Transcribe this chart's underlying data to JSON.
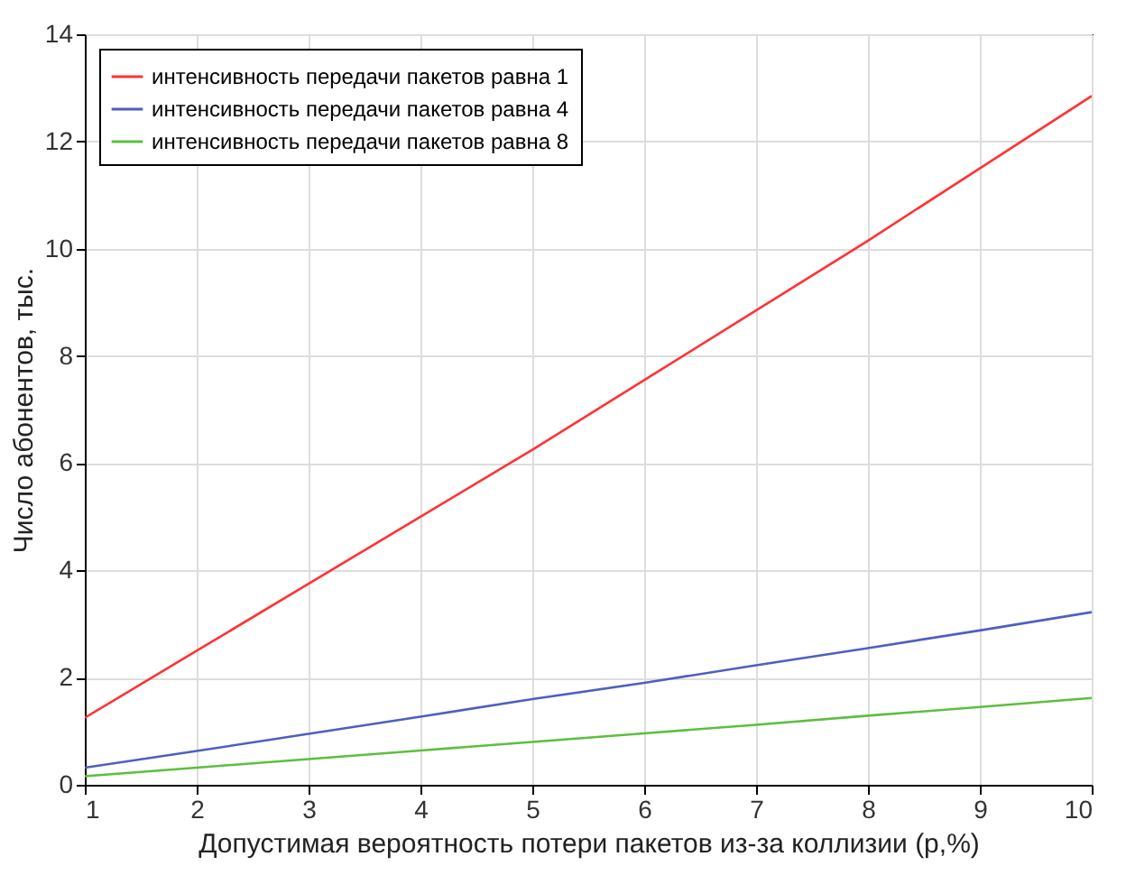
{
  "chart_data": {
    "type": "line",
    "xlabel": "Допустимая вероятность потери пакетов из-за коллизии (p,%)",
    "ylabel": "Число абонентов, тыс.",
    "x": [
      1,
      2,
      3,
      4,
      5,
      6,
      7,
      8,
      9,
      10
    ],
    "series": [
      {
        "name": "интенсивность передачи пакетов равна 1",
        "color": "#ff3333",
        "values": [
          1.25,
          2.5,
          3.75,
          5.0,
          6.25,
          7.55,
          8.85,
          10.15,
          11.5,
          12.85
        ]
      },
      {
        "name": "интенсивность передачи пакетов равна 4",
        "color": "#4f5fbf",
        "values": [
          0.32,
          0.63,
          0.95,
          1.27,
          1.6,
          1.9,
          2.23,
          2.55,
          2.88,
          3.22
        ]
      },
      {
        "name": "интенсивность передачи пакетов равна 8",
        "color": "#5cbf3f",
        "values": [
          0.16,
          0.32,
          0.48,
          0.64,
          0.8,
          0.96,
          1.12,
          1.29,
          1.45,
          1.62
        ]
      }
    ],
    "xlim": [
      1,
      10
    ],
    "xticks": [
      1,
      2,
      3,
      4,
      5,
      6,
      7,
      8,
      9,
      10
    ],
    "ylim": [
      0,
      14
    ],
    "yticks": [
      0,
      2,
      4,
      6,
      8,
      10,
      12,
      14
    ],
    "grid": true,
    "legend": "top left",
    "marker": "none",
    "line_style": "solid"
  }
}
